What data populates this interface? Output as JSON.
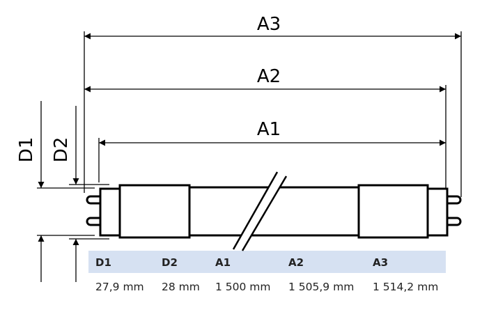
{
  "diagram": {
    "labels": {
      "a3": "A3",
      "a2": "A2",
      "a1": "A1",
      "d1": "D1",
      "d2": "D2"
    },
    "table": {
      "header_color": "#d6e1f2",
      "columns": [
        {
          "header": "D1",
          "value": "27,9 mm"
        },
        {
          "header": "D2",
          "value": "28 mm"
        },
        {
          "header": "A1",
          "value": "1 500 mm"
        },
        {
          "header": "A2",
          "value": "1 505,9 mm"
        },
        {
          "header": "A3",
          "value": "1 514,2 mm"
        }
      ]
    }
  }
}
